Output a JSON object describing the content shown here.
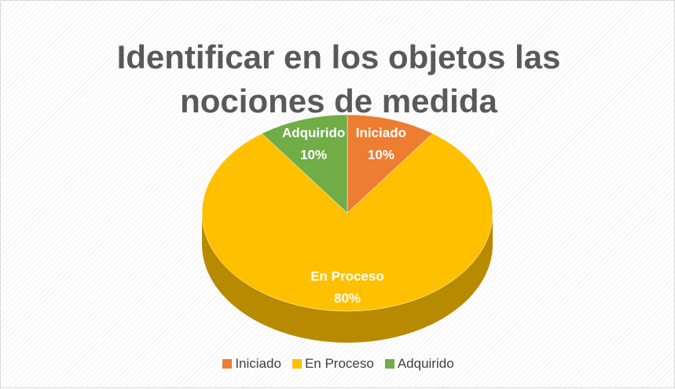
{
  "chart_data": {
    "type": "pie",
    "title": "Identificar en los objetos las nociones de medida",
    "categories": [
      "Iniciado",
      "En Proceso",
      "Adquirido"
    ],
    "values": [
      10,
      80,
      10
    ],
    "value_labels": [
      "10%",
      "80%",
      "10%"
    ],
    "colors": [
      "#ED7D31",
      "#FFC000",
      "#70AD47"
    ],
    "legend": "bottom"
  }
}
